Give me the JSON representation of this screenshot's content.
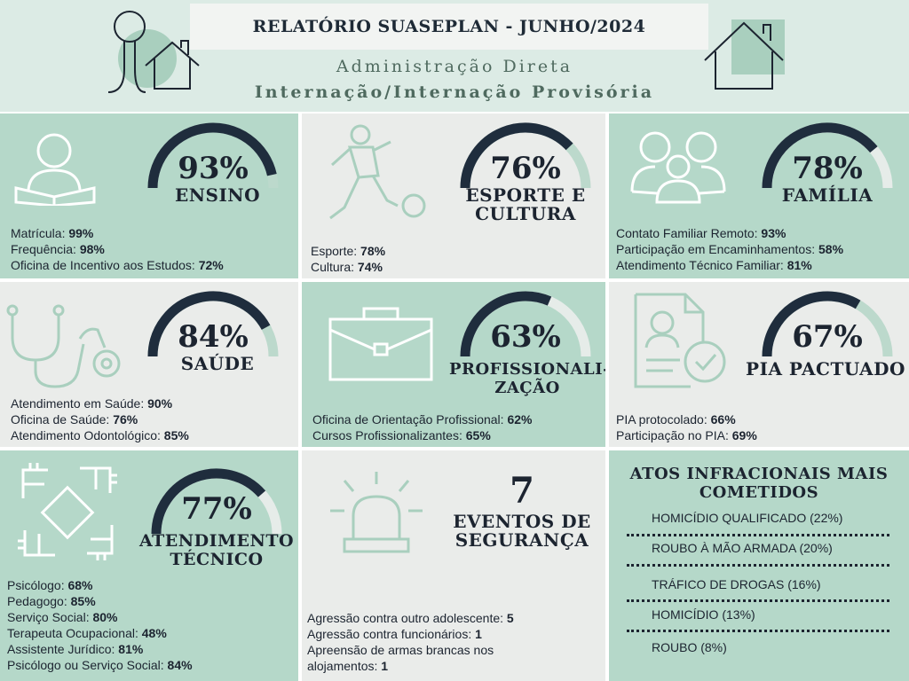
{
  "header": {
    "title": "RELATÓRIO SUASEPLAN - JUNHO/2024",
    "subtitle1": "Administração Direta",
    "subtitle2": "Internação/Internação Provisória"
  },
  "panels": {
    "ensino": {
      "percent_label": "93%",
      "percent": 93,
      "title": "ENSINO",
      "icon": "reading-person-icon",
      "items": [
        {
          "label": "Matrícula: ",
          "value": "99%"
        },
        {
          "label": "Frequência: ",
          "value": "98%"
        },
        {
          "label": "Oficina de Incentivo aos Estudos: ",
          "value": "72%"
        }
      ]
    },
    "esporte": {
      "percent_label": "76%",
      "percent": 76,
      "title_line1": "ESPORTE E",
      "title_line2": "CULTURA",
      "icon": "soccer-player-icon",
      "items": [
        {
          "label": "Esporte: ",
          "value": "78%"
        },
        {
          "label": "Cultura: ",
          "value": "74%"
        }
      ]
    },
    "familia": {
      "percent_label": "78%",
      "percent": 78,
      "title": "FAMÍLIA",
      "icon": "family-icon",
      "items": [
        {
          "label": "Contato Familiar Remoto: ",
          "value": "93%"
        },
        {
          "label": "Participação em Encaminhamentos: ",
          "value": "58%"
        },
        {
          "label": "Atendimento Técnico Familiar: ",
          "value": "81%"
        }
      ]
    },
    "saude": {
      "percent_label": "84%",
      "percent": 84,
      "title": "SAÚDE",
      "icon": "stethoscope-icon",
      "items": [
        {
          "label": "Atendimento em Saúde: ",
          "value": "90%"
        },
        {
          "label": "Oficina de Saúde: ",
          "value": "76%"
        },
        {
          "label": "Atendimento Odontológico: ",
          "value": "85%"
        }
      ]
    },
    "profissionalizacao": {
      "percent_label": "63%",
      "percent": 63,
      "title_line1": "PROFISSIONALI-",
      "title_line2": "ZAÇÃO",
      "icon": "briefcase-icon",
      "items": [
        {
          "label": "Oficina de Orientação Profissional: ",
          "value": "62%"
        },
        {
          "label": "Cursos Profissionalizantes: ",
          "value": "65%"
        }
      ]
    },
    "pia": {
      "percent_label": "67%",
      "percent": 67,
      "title": "PIA PACTUADO",
      "icon": "document-check-icon",
      "items": [
        {
          "label": "PIA protocolado: ",
          "value": "66%"
        },
        {
          "label": "Participação no PIA: ",
          "value": "69%"
        }
      ]
    },
    "atendimento": {
      "percent_label": "77%",
      "percent": 77,
      "title_line1": "ATENDIMENTO",
      "title_line2": "TÉCNICO",
      "icon": "joined-hands-icon",
      "items": [
        {
          "label": "Psicólogo: ",
          "value": "68%"
        },
        {
          "label": "Pedagogo: ",
          "value": "85%"
        },
        {
          "label": "Serviço Social: ",
          "value": "80%"
        },
        {
          "label": "Terapeuta Ocupacional: ",
          "value": "48%"
        },
        {
          "label": "Assistente Jurídico: ",
          "value": "81%"
        },
        {
          "label": "Psicólogo ou Serviço Social: ",
          "value": "84%"
        }
      ]
    },
    "seguranca": {
      "count": "7",
      "title_line1": "EVENTOS DE",
      "title_line2": "SEGURANÇA",
      "icon": "alarm-siren-icon",
      "items": [
        {
          "label": "Agressão contra outro adolescente: ",
          "value": "5"
        },
        {
          "label": "Agressão contra funcionários: ",
          "value": "1"
        },
        {
          "label": "Apreensão de armas brancas nos",
          "value": ""
        },
        {
          "label": "alojamentos: ",
          "value": "1"
        }
      ]
    },
    "atos": {
      "title_line1": "ATOS INFRACIONAIS MAIS",
      "title_line2": "COMETIDOS",
      "items": [
        "HOMICÍDIO QUALIFICADO (22%)",
        "ROUBO À MÃO ARMADA  (20%)",
        "TRÁFICO DE DROGAS (16%)",
        "HOMICÍDIO (13%)",
        "ROUBO (8%)"
      ]
    }
  },
  "colors": {
    "gauge_fill": "#1f2d3d",
    "gauge_track": "#bcd9cc",
    "gauge_track_light": "#e6ece9",
    "panel_green": "#b5d8c9",
    "panel_gray": "#eaecea"
  }
}
